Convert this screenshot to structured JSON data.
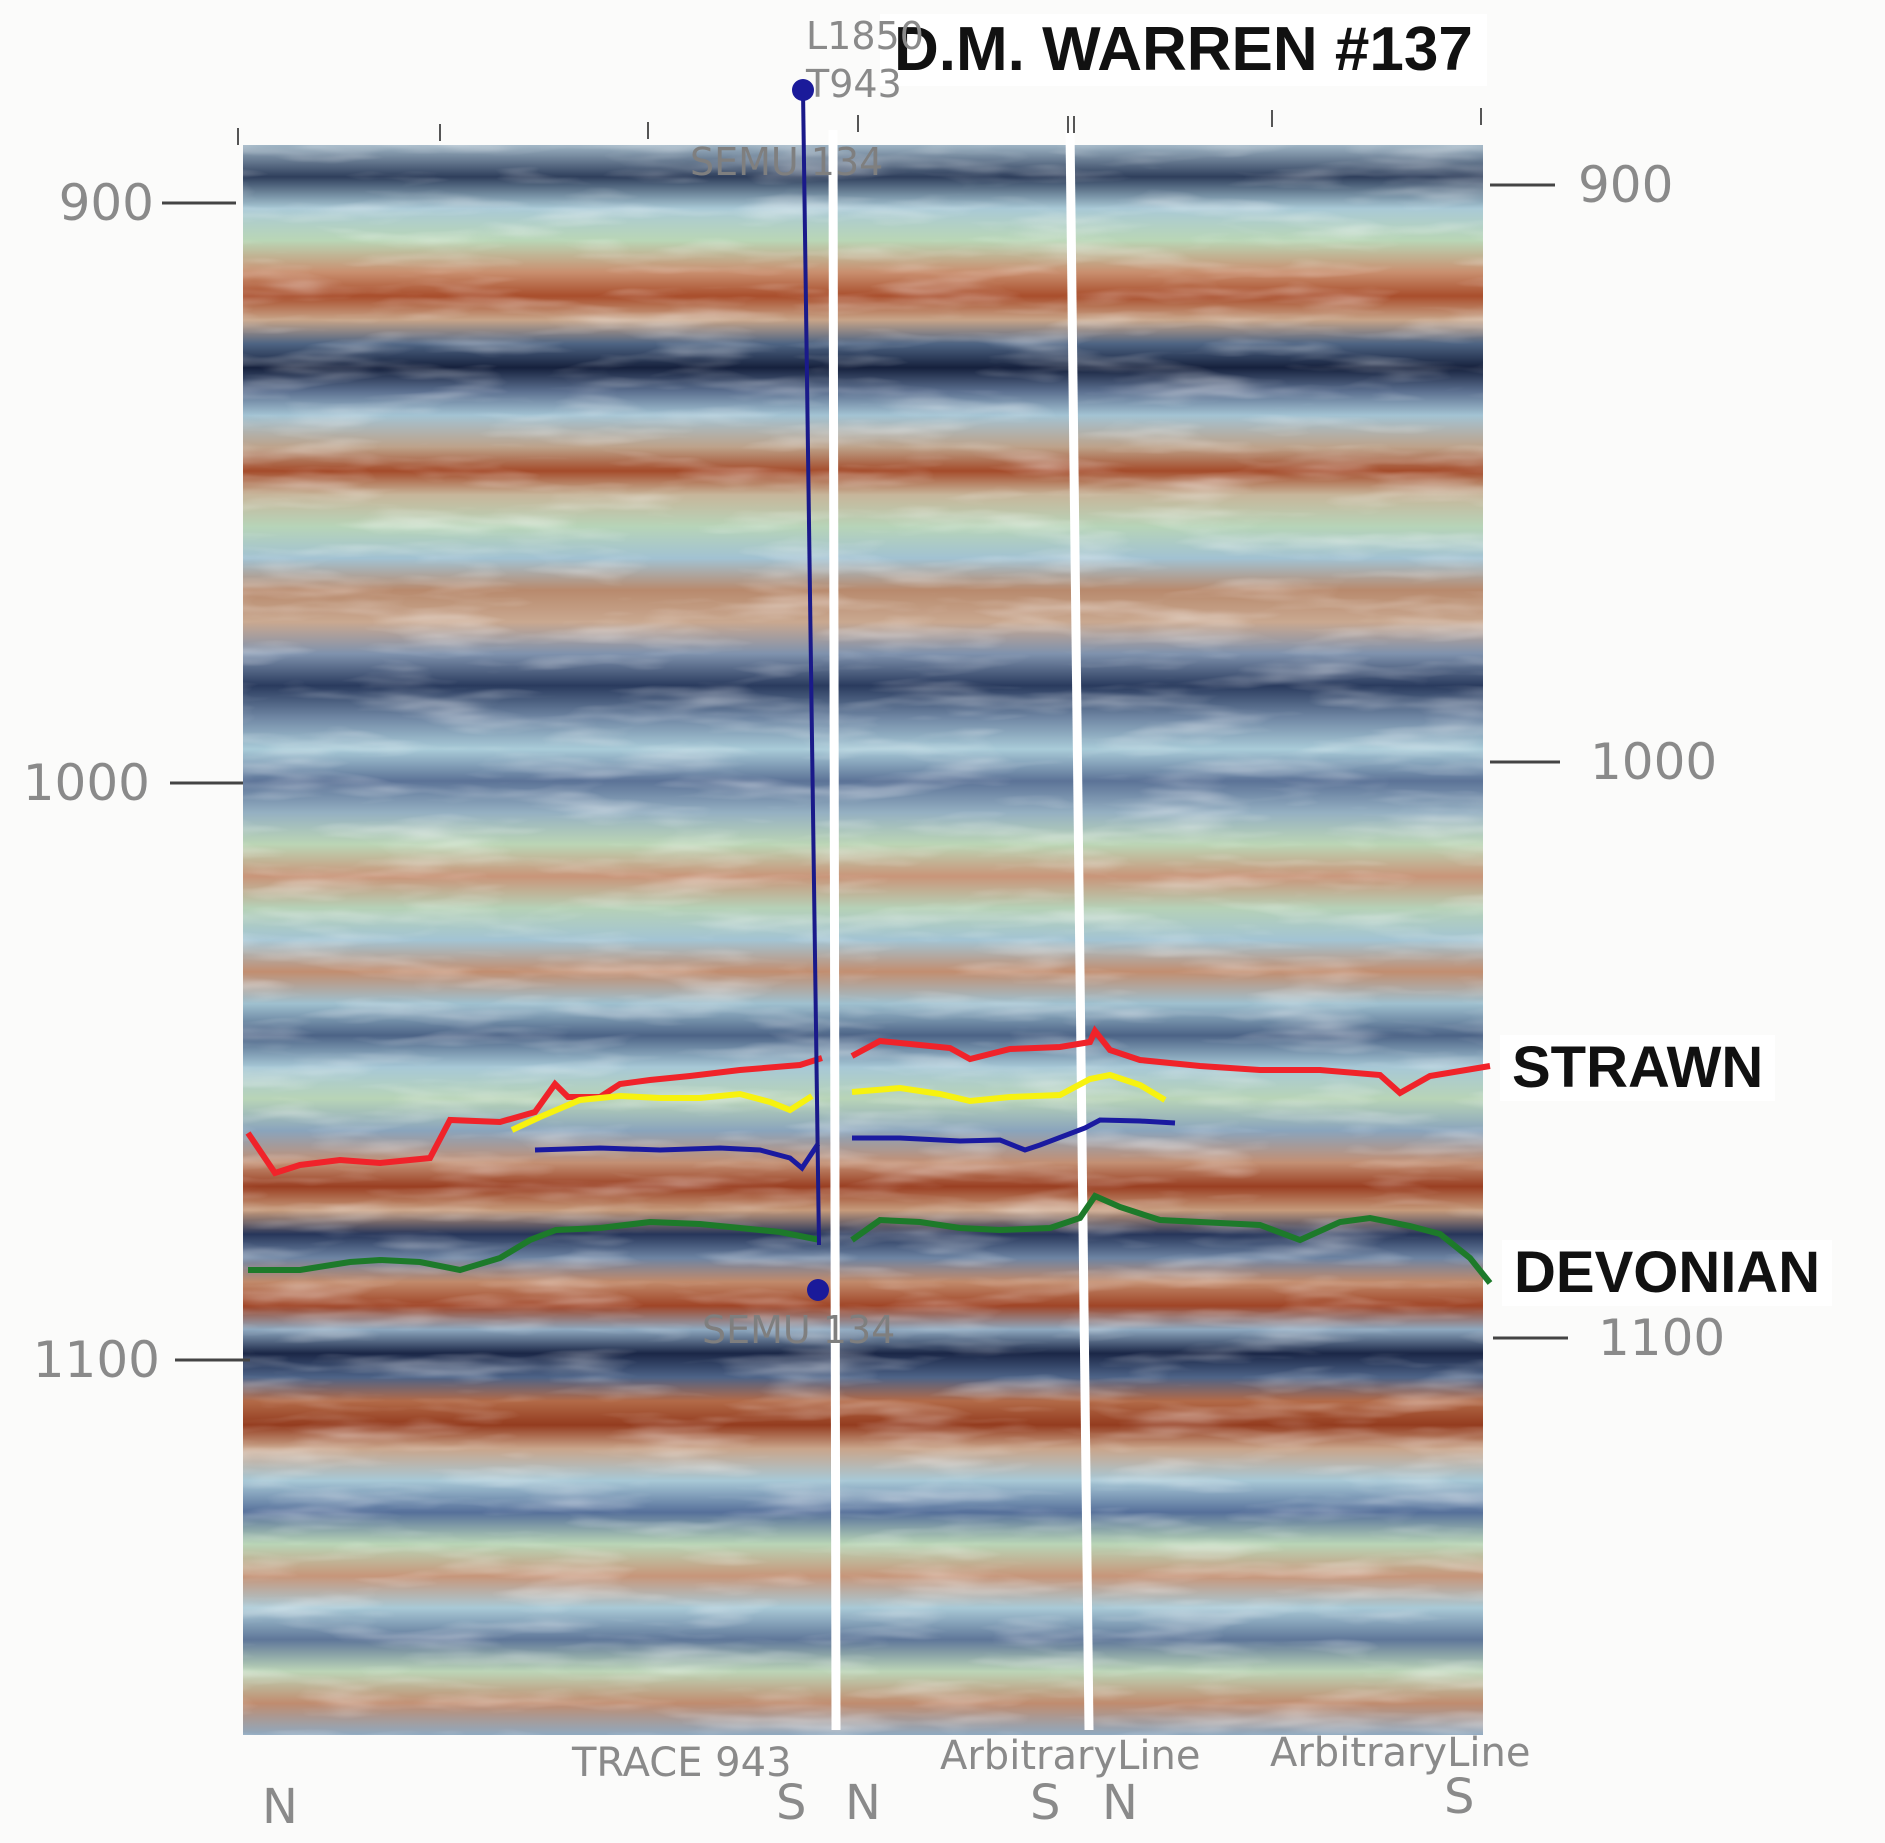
{
  "title": "D.M. WARREN #137",
  "well": {
    "name": "SEMU 134",
    "top_name": "SEMU 134",
    "line_label": "L1850",
    "trace_label": "T943"
  },
  "time_axis": {
    "ticks": [
      "900",
      "1000",
      "1100"
    ]
  },
  "horizons": {
    "strawn": "STRAWN",
    "devonian": "DEVONIAN"
  },
  "bottom_labels": {
    "trace": "TRACE 943",
    "arbitrary_1": "ArbitraryLine",
    "arbitrary_2": "ArbitraryLine"
  },
  "directions": {
    "n1": "N",
    "s1": "S",
    "n2": "N",
    "s2": "S",
    "n3": "N",
    "s3": "S"
  },
  "colors": {
    "strawn_pick": "#f0232a",
    "yellow_pick": "#f7f20f",
    "blue_pick": "#1a1aa0",
    "devonian_pick": "#1d7a2a",
    "well_path": "#1a1a8a",
    "trough": "#1d2b4e",
    "peak": "#9a3214",
    "background": "#fbfbfa"
  }
}
